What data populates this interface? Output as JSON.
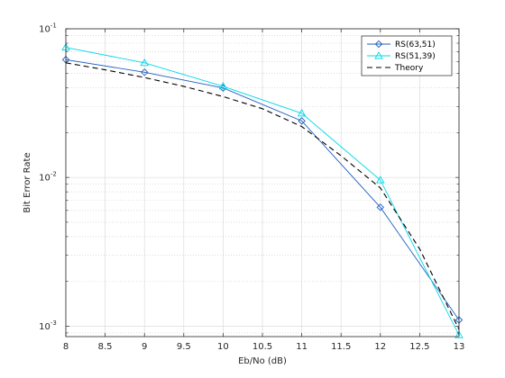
{
  "chart_data": {
    "type": "line",
    "xlabel": "Eb/No (dB)",
    "ylabel": "Bit Error Rate",
    "xlim": [
      8,
      13
    ],
    "ylim": [
      0.00085,
      0.1
    ],
    "yscale": "log",
    "grid": true,
    "legend_position": "top-right",
    "x_ticks": [
      "8",
      "8.5",
      "9",
      "9.5",
      "10",
      "10.5",
      "11",
      "11.5",
      "12",
      "12.5",
      "13"
    ],
    "y_ticks": [
      {
        "value": 0.1,
        "base": "10",
        "exp": "-1"
      },
      {
        "value": 0.01,
        "base": "10",
        "exp": "-2"
      },
      {
        "value": 0.001,
        "base": "10",
        "exp": "-3"
      }
    ],
    "series": [
      {
        "name": "RS(63,51)",
        "color": "#1f5fbf",
        "marker": "diamond",
        "dash": "none",
        "x": [
          8,
          9,
          10,
          11,
          12,
          13
        ],
        "y": [
          0.062,
          0.051,
          0.04,
          0.024,
          0.0063,
          0.0011
        ]
      },
      {
        "name": "RS(51,39)",
        "color": "#00d8e8",
        "marker": "triangle",
        "dash": "none",
        "x": [
          8,
          9,
          10,
          11,
          12,
          13
        ],
        "y": [
          0.075,
          0.059,
          0.041,
          0.027,
          0.0096,
          0.00087
        ]
      },
      {
        "name": "Theory",
        "color": "#000000",
        "marker": "none",
        "dash": "dashed",
        "x": [
          8,
          8.5,
          9,
          9.5,
          10,
          10.5,
          11,
          11.5,
          12,
          12.5,
          13
        ],
        "y": [
          0.059,
          0.053,
          0.047,
          0.041,
          0.035,
          0.029,
          0.022,
          0.014,
          0.0085,
          0.0033,
          0.00095
        ]
      }
    ]
  }
}
